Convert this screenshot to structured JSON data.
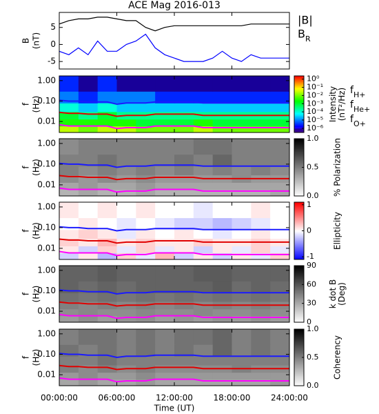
{
  "chart_data": [
    {
      "type": "line",
      "title": "ACE Mag 2016-013",
      "ylabel": [
        "B",
        "(nT)"
      ],
      "x": [
        0,
        1,
        2,
        3,
        4,
        5,
        6,
        7,
        8,
        9,
        10,
        11,
        12,
        13,
        14,
        15,
        16,
        17,
        18,
        19,
        20,
        21,
        22,
        23,
        24
      ],
      "ylim": [
        -7.2,
        9.4
      ],
      "yticks": [
        -5,
        0,
        5
      ],
      "series": [
        {
          "name": "|B|",
          "color": "#000000",
          "values": [
            6,
            7,
            7.5,
            7.5,
            8,
            8,
            7.5,
            7,
            7,
            5,
            4,
            5,
            5.5,
            5.5,
            5.5,
            5.5,
            5.5,
            5.5,
            5.5,
            5.5,
            6,
            6,
            6,
            6,
            6
          ]
        },
        {
          "name": "BR",
          "color": "#0000ff",
          "values": [
            -2,
            -3,
            -1,
            -3,
            1,
            -2,
            -2,
            0,
            1,
            3,
            -1,
            -3,
            -4,
            -5,
            -5,
            -5,
            -4,
            -2,
            -4,
            -5,
            -3,
            -4,
            -4,
            -4,
            -4
          ]
        }
      ]
    },
    {
      "type": "heatmap",
      "ylabel": [
        "f",
        "(Hz)"
      ],
      "ylog": true,
      "ylim": [
        0.0029,
        1.7
      ],
      "yticks": [
        {
          "value": 1,
          "label": "1.00"
        },
        {
          "value": 0.1,
          "label": "0.10"
        },
        {
          "value": 0.01,
          "label": "0.01"
        }
      ],
      "x_bins": [
        0,
        2,
        4,
        6,
        8,
        10,
        12,
        14,
        16,
        18,
        20,
        22,
        24
      ],
      "y_bins": [
        0.0029,
        0.006,
        0.013,
        0.03,
        0.08,
        0.3,
        1.7
      ],
      "colormap": "rainbow",
      "zlog": true,
      "zlim": [
        3e-07,
        2.5
      ],
      "zlabel": [
        "Intensity",
        "(nT²/Hz)"
      ],
      "zticks": [
        {
          "value": 1,
          "label": "10⁰"
        },
        {
          "value": 0.1,
          "label": "10⁻¹"
        },
        {
          "value": 0.01,
          "label": "10⁻²"
        },
        {
          "value": 0.001,
          "label": "10⁻³"
        },
        {
          "value": 0.0001,
          "label": "10⁻⁴"
        },
        {
          "value": 1e-05,
          "label": "10⁻⁵"
        },
        {
          "value": 1e-06,
          "label": "10⁻⁶"
        }
      ],
      "z": [
        [
          0.03,
          0.01,
          0.03,
          0.03,
          0.01,
          0.01,
          0.01,
          0.03,
          0.01,
          0.01,
          0.01,
          0.01
        ],
        [
          0.003,
          0.003,
          0.003,
          0.003,
          0.001,
          0.001,
          0.001,
          0.003,
          0.001,
          0.001,
          0.001,
          0.001
        ],
        [
          0.001,
          0.0003,
          0.001,
          0.0003,
          0.0003,
          0.0003,
          0.0003,
          0.0003,
          0.0003,
          0.0003,
          0.0003,
          0.0003
        ],
        [
          0.0001,
          3e-05,
          0.0001,
          3e-05,
          3e-05,
          3e-05,
          3e-05,
          3e-05,
          3e-05,
          3e-05,
          3e-05,
          3e-05
        ],
        [
          1e-05,
          3e-06,
          1e-05,
          1e-05,
          1e-05,
          3e-06,
          3e-06,
          3e-06,
          3e-06,
          3e-06,
          3e-06,
          3e-06
        ],
        [
          3e-06,
          1e-06,
          3e-06,
          1e-06,
          1e-06,
          1e-06,
          1e-06,
          1e-06,
          1e-06,
          1e-06,
          1e-06,
          1e-06
        ]
      ],
      "series": [
        {
          "name": "fH+",
          "color": "#1a1aff",
          "values": [
            0.11,
            0.1,
            0.1,
            0.09,
            0.09,
            0.09,
            0.07,
            0.08,
            0.08,
            0.08,
            0.09,
            0.09,
            0.09,
            0.09,
            0.09,
            0.08,
            0.08,
            0.08,
            0.08,
            0.08,
            0.08,
            0.08,
            0.08,
            0.08,
            0.08
          ]
        },
        {
          "name": "fHe+",
          "color": "#e00000",
          "values": [
            0.028,
            0.025,
            0.025,
            0.023,
            0.023,
            0.023,
            0.018,
            0.02,
            0.02,
            0.02,
            0.023,
            0.023,
            0.023,
            0.023,
            0.023,
            0.02,
            0.02,
            0.02,
            0.02,
            0.02,
            0.02,
            0.02,
            0.02,
            0.02,
            0.02
          ]
        },
        {
          "name": "fO+",
          "color": "#ff00ff",
          "values": [
            0.007,
            0.006,
            0.006,
            0.006,
            0.006,
            0.006,
            0.0045,
            0.005,
            0.005,
            0.005,
            0.006,
            0.006,
            0.006,
            0.006,
            0.006,
            0.005,
            0.005,
            0.005,
            0.005,
            0.005,
            0.005,
            0.005,
            0.005,
            0.005,
            0.005
          ]
        }
      ]
    },
    {
      "type": "heatmap",
      "ylabel": [
        "f",
        "(Hz)"
      ],
      "ylog": true,
      "ylim": [
        0.0029,
        1.7
      ],
      "yticks": [
        {
          "value": 1,
          "label": "1.00"
        },
        {
          "value": 0.1,
          "label": "0.10"
        },
        {
          "value": 0.01,
          "label": "0.01"
        }
      ],
      "x_bins": [
        0,
        2,
        4,
        6,
        8,
        10,
        12,
        14,
        16,
        18,
        20,
        22,
        24
      ],
      "y_bins": [
        0.0029,
        0.006,
        0.013,
        0.03,
        0.08,
        0.3,
        1.7
      ],
      "colormap": "gray",
      "zlim": [
        0,
        1
      ],
      "zlabel": [
        "% Polarization"
      ],
      "zticks": [
        {
          "value": 0,
          "label": "0.0"
        },
        {
          "value": 0.5,
          "label": "0.5"
        },
        {
          "value": 1,
          "label": "1.0"
        }
      ],
      "z": [
        [
          0.3,
          0.35,
          0.3,
          0.3,
          0.35,
          0.3,
          0.3,
          0.3,
          0.3,
          0.3,
          0.3,
          0.35
        ],
        [
          0.35,
          0.4,
          0.35,
          0.35,
          0.4,
          0.35,
          0.35,
          0.35,
          0.35,
          0.35,
          0.35,
          0.35
        ],
        [
          0.45,
          0.4,
          0.45,
          0.4,
          0.45,
          0.4,
          0.4,
          0.4,
          0.4,
          0.45,
          0.4,
          0.4
        ],
        [
          0.5,
          0.45,
          0.5,
          0.45,
          0.5,
          0.45,
          0.5,
          0.45,
          0.5,
          0.45,
          0.5,
          0.45
        ],
        [
          0.5,
          0.5,
          0.55,
          0.5,
          0.5,
          0.5,
          0.55,
          0.5,
          0.6,
          0.5,
          0.5,
          0.5
        ],
        [
          0.45,
          0.5,
          0.5,
          0.5,
          0.5,
          0.5,
          0.5,
          0.55,
          0.55,
          0.5,
          0.5,
          0.5
        ]
      ]
    },
    {
      "type": "heatmap",
      "ylabel": [
        "f",
        "(Hz)"
      ],
      "ylog": true,
      "ylim": [
        0.0029,
        1.7
      ],
      "yticks": [
        {
          "value": 1,
          "label": "1.00"
        },
        {
          "value": 0.1,
          "label": "0.10"
        },
        {
          "value": 0.01,
          "label": "0.01"
        }
      ],
      "x_bins": [
        0,
        2,
        4,
        6,
        8,
        10,
        12,
        14,
        16,
        18,
        20,
        22,
        24
      ],
      "y_bins": [
        0.0029,
        0.006,
        0.013,
        0.03,
        0.08,
        0.3,
        1.7
      ],
      "colormap": "bwr",
      "zlim": [
        -1.1,
        1.1
      ],
      "zlabel": [
        "Ellipticity"
      ],
      "zticks": [
        -1,
        0,
        1
      ],
      "z": [
        [
          -0.2,
          0.1,
          -0.3,
          0.2,
          -0.1,
          0.3,
          -0.2,
          0.1,
          -0.2,
          0.1,
          -0.1,
          0.2
        ],
        [
          0.1,
          -0.2,
          0.2,
          -0.1,
          0.2,
          -0.1,
          0.1,
          -0.2,
          0.1,
          -0.1,
          0.2,
          -0.1
        ],
        [
          0.2,
          0.1,
          0.3,
          0.1,
          0.2,
          0.1,
          0.1,
          0.2,
          0.1,
          0.1,
          0.2,
          0.1
        ],
        [
          0.1,
          0.2,
          0.1,
          -0.1,
          0.1,
          0,
          0.1,
          0,
          -0.1,
          0,
          0.1,
          0
        ],
        [
          0,
          0.1,
          0,
          -0.1,
          0,
          -0.1,
          -0.2,
          -0.2,
          -0.3,
          -0.2,
          -0.1,
          0
        ],
        [
          0.1,
          0,
          0.1,
          0,
          0.1,
          0,
          0,
          -0.1,
          0,
          0,
          0.1,
          0
        ]
      ]
    },
    {
      "type": "heatmap",
      "ylabel": [
        "f",
        "(Hz)"
      ],
      "ylog": true,
      "ylim": [
        0.0029,
        1.7
      ],
      "yticks": [
        {
          "value": 1,
          "label": "1.00"
        },
        {
          "value": 0.1,
          "label": "0.10"
        },
        {
          "value": 0.01,
          "label": "0.01"
        }
      ],
      "x_bins": [
        0,
        2,
        4,
        6,
        8,
        10,
        12,
        14,
        16,
        18,
        20,
        22,
        24
      ],
      "y_bins": [
        0.0029,
        0.006,
        0.013,
        0.03,
        0.08,
        0.3,
        1.7
      ],
      "colormap": "gray",
      "zlim": [
        0,
        90
      ],
      "zlabel": [
        "k dot B",
        "(Deg)"
      ],
      "zticks": [
        0,
        30,
        60,
        90
      ],
      "z": [
        [
          35,
          40,
          35,
          38,
          40,
          35,
          38,
          35,
          38,
          35,
          38,
          35
        ],
        [
          40,
          42,
          40,
          40,
          42,
          40,
          40,
          42,
          40,
          40,
          42,
          40
        ],
        [
          45,
          42,
          45,
          42,
          45,
          42,
          45,
          42,
          45,
          42,
          45,
          42
        ],
        [
          50,
          48,
          50,
          48,
          50,
          48,
          50,
          48,
          50,
          48,
          50,
          48
        ],
        [
          55,
          52,
          55,
          52,
          55,
          55,
          55,
          55,
          58,
          52,
          55,
          52
        ],
        [
          55,
          55,
          58,
          55,
          55,
          55,
          55,
          58,
          58,
          55,
          55,
          55
        ]
      ]
    },
    {
      "type": "heatmap",
      "ylabel": [
        "f",
        "(Hz)"
      ],
      "ylog": true,
      "ylim": [
        0.0029,
        1.7
      ],
      "yticks": [
        {
          "value": 1,
          "label": "1.00"
        },
        {
          "value": 0.1,
          "label": "0.10"
        },
        {
          "value": 0.01,
          "label": "0.01"
        }
      ],
      "x_bins": [
        0,
        2,
        4,
        6,
        8,
        10,
        12,
        14,
        16,
        18,
        20,
        22,
        24
      ],
      "y_bins": [
        0.0029,
        0.006,
        0.013,
        0.03,
        0.08,
        0.3,
        1.7
      ],
      "colormap": "gray",
      "zlim": [
        0,
        1
      ],
      "zlabel": [
        "Coherency"
      ],
      "zticks": [
        {
          "value": 0,
          "label": "0.0"
        },
        {
          "value": 0.5,
          "label": "0.5"
        },
        {
          "value": 1,
          "label": "1.0"
        }
      ],
      "z": [
        [
          0.35,
          0.4,
          0.35,
          0.35,
          0.4,
          0.35,
          0.35,
          0.35,
          0.35,
          0.35,
          0.35,
          0.4
        ],
        [
          0.4,
          0.45,
          0.4,
          0.4,
          0.45,
          0.4,
          0.4,
          0.4,
          0.4,
          0.4,
          0.4,
          0.4
        ],
        [
          0.5,
          0.45,
          0.5,
          0.45,
          0.5,
          0.45,
          0.45,
          0.45,
          0.45,
          0.5,
          0.45,
          0.45
        ],
        [
          0.5,
          0.5,
          0.55,
          0.5,
          0.5,
          0.5,
          0.5,
          0.5,
          0.5,
          0.5,
          0.5,
          0.5
        ],
        [
          0.55,
          0.5,
          0.55,
          0.5,
          0.55,
          0.5,
          0.55,
          0.5,
          0.6,
          0.5,
          0.55,
          0.5
        ],
        [
          0.5,
          0.55,
          0.55,
          0.5,
          0.55,
          0.5,
          0.55,
          0.55,
          0.6,
          0.5,
          0.55,
          0.5
        ]
      ],
      "xlim": [
        0,
        24
      ],
      "xticks": [
        {
          "value": 0,
          "label": "00:00:00"
        },
        {
          "value": 6,
          "label": "06:00:00"
        },
        {
          "value": 12,
          "label": "12:00:00"
        },
        {
          "value": 18,
          "label": "18:00:00"
        },
        {
          "value": 24,
          "label": "24:00:00"
        }
      ],
      "xlabel": "Time (UT)"
    }
  ]
}
